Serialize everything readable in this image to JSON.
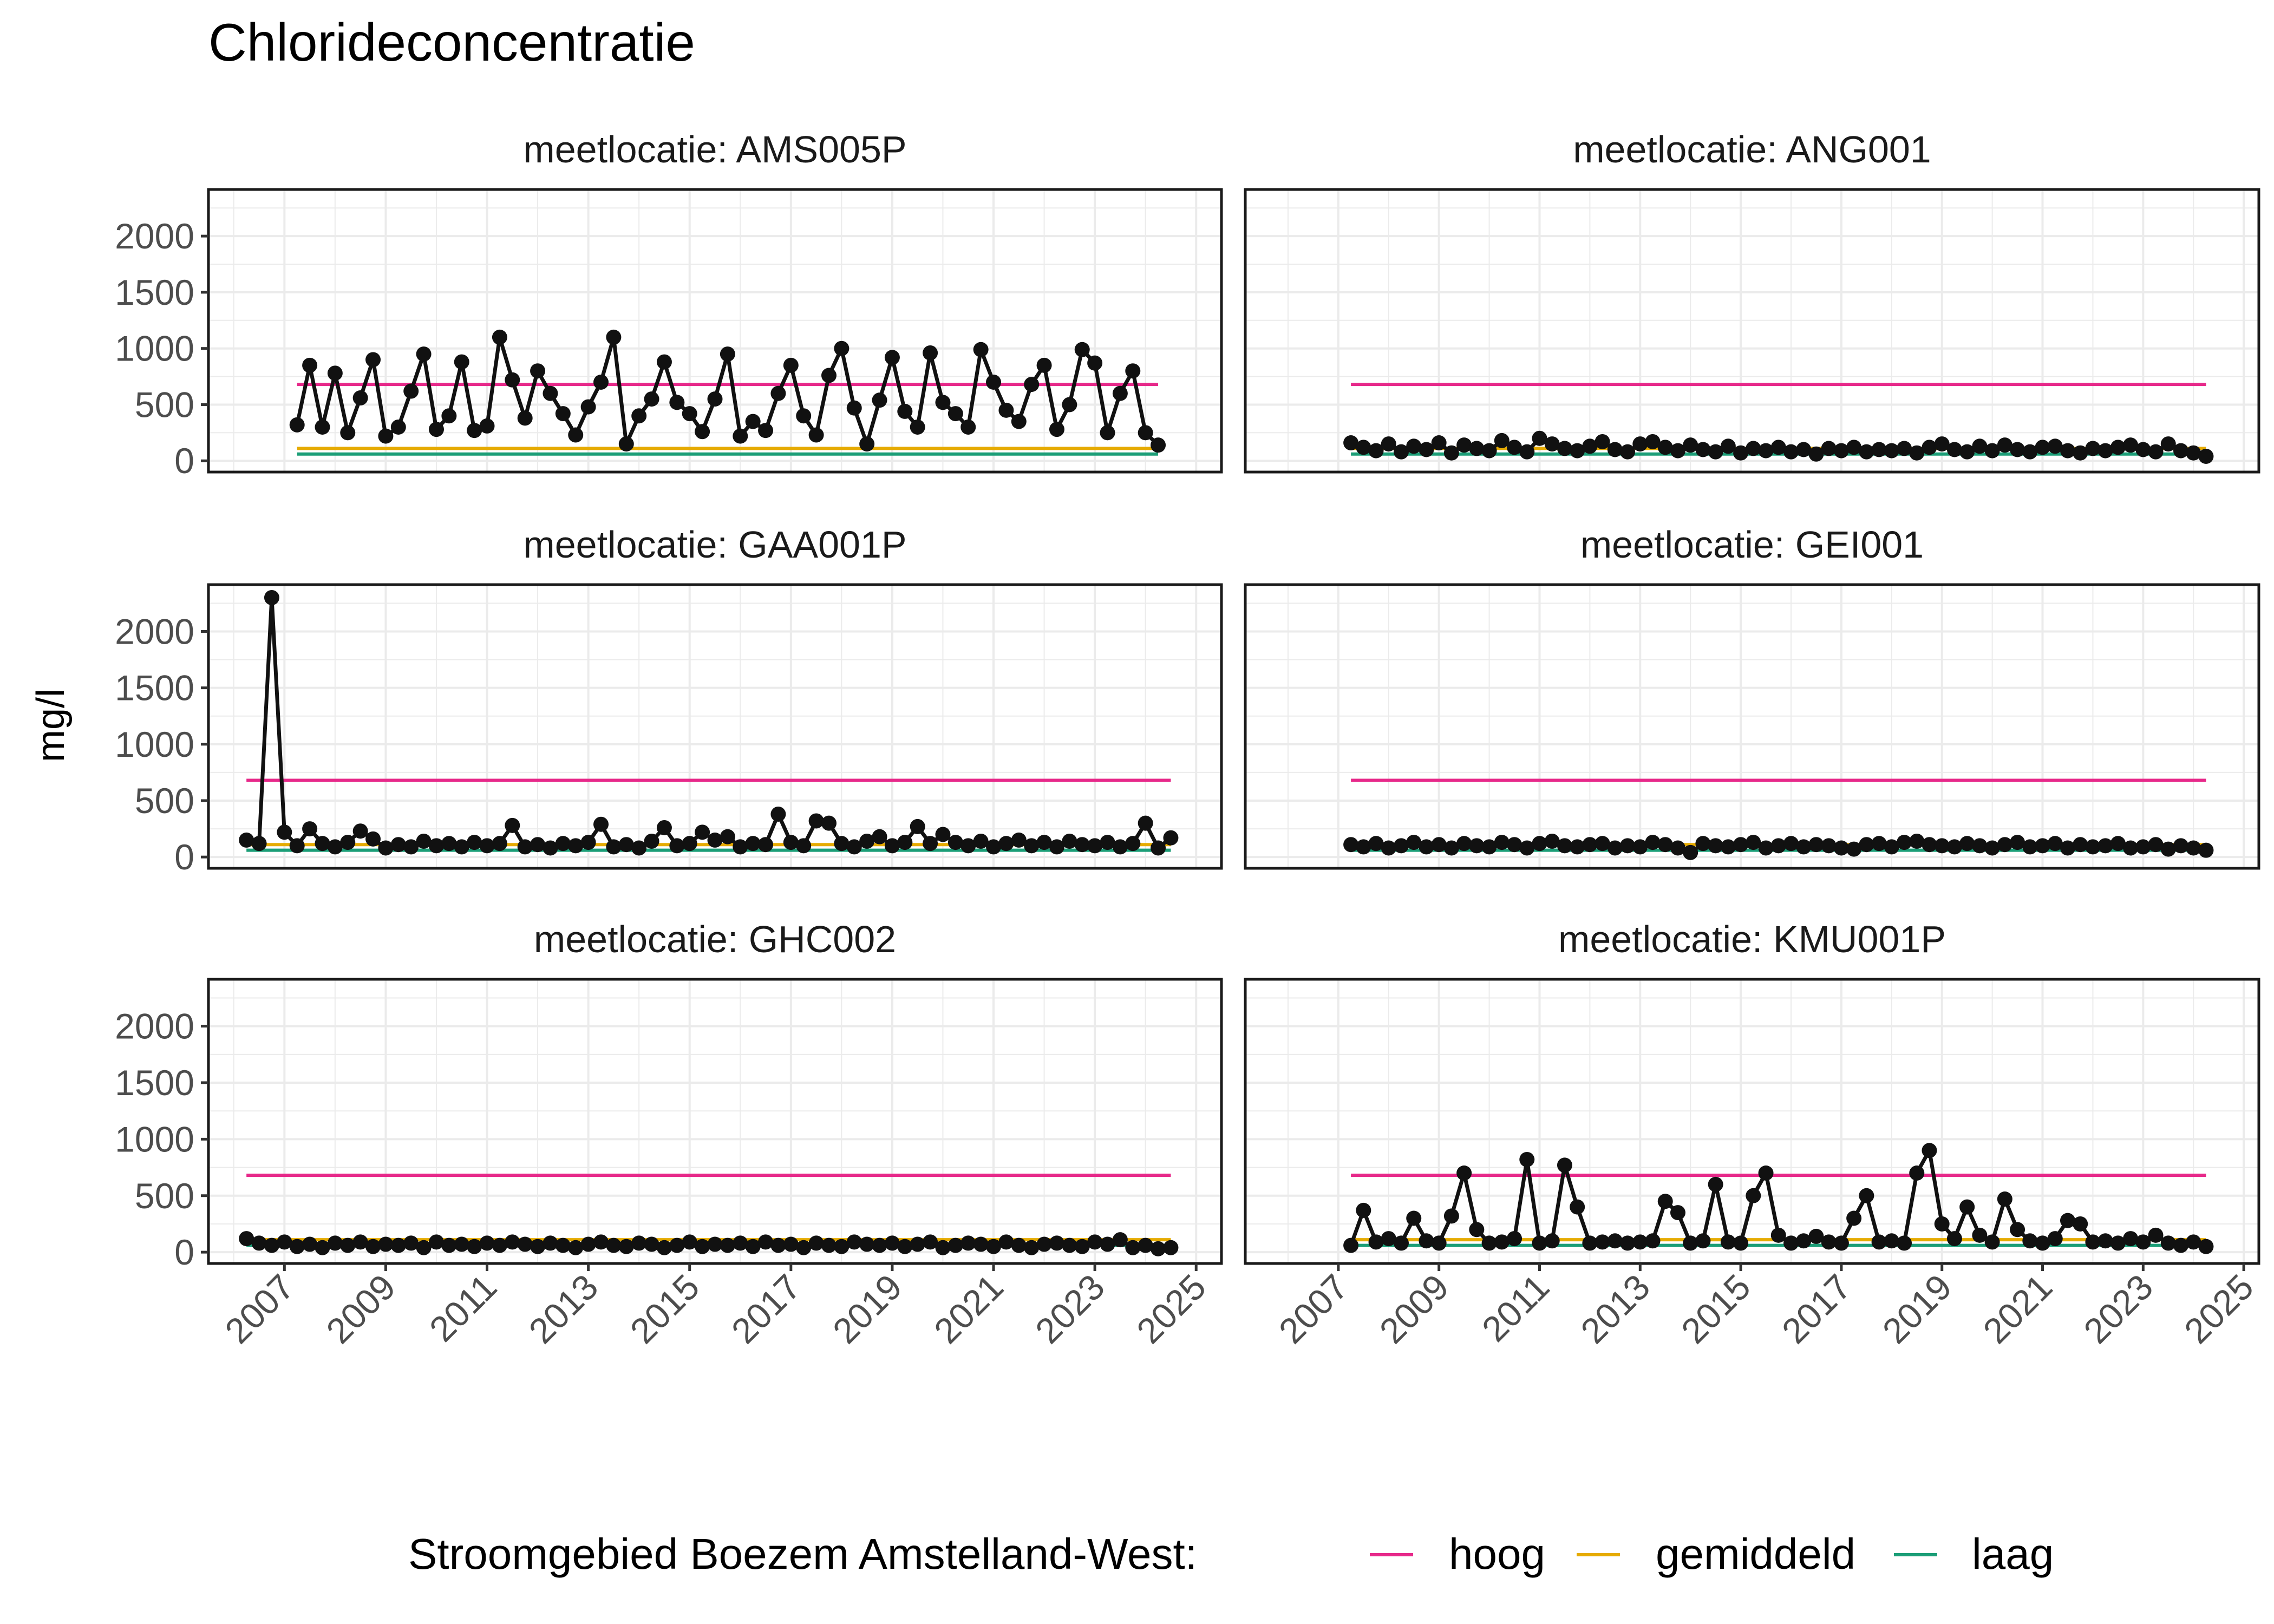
{
  "title": "Chlorideconcentratie",
  "ylabel": "mg/l",
  "legend": {
    "title": "Stroomgebied Boezem Amstelland-West:",
    "placement": "bottom",
    "items": [
      {
        "label": "hoog",
        "color": "#E7298A",
        "value": 680
      },
      {
        "label": "gemiddeld",
        "color": "#E6AB02",
        "value": 110
      },
      {
        "label": "laag",
        "color": "#1B9E77",
        "value": 60
      }
    ]
  },
  "colors": {
    "series": "#111111",
    "grid": "#EBEBEB",
    "tick_text": "#4D4D4D"
  },
  "y_ticks": [
    0,
    500,
    1000,
    1500,
    2000
  ],
  "x_ticks": [
    2007,
    2009,
    2011,
    2013,
    2015,
    2017,
    2019,
    2021,
    2023,
    2025
  ],
  "chart_data": [
    {
      "type": "line",
      "title": "meetlocatie: AMS005P",
      "xlim": [
        2005.5,
        2025.5
      ],
      "ylim": [
        -100,
        2415
      ],
      "grid": true,
      "x": [
        2007.25,
        2007.5,
        2007.75,
        2008,
        2008.25,
        2008.5,
        2008.75,
        2009,
        2009.25,
        2009.5,
        2009.75,
        2010,
        2010.25,
        2010.5,
        2010.75,
        2011,
        2011.25,
        2011.5,
        2011.75,
        2012,
        2012.25,
        2012.5,
        2012.75,
        2013,
        2013.25,
        2013.5,
        2013.75,
        2014,
        2014.25,
        2014.5,
        2014.75,
        2015,
        2015.25,
        2015.5,
        2015.75,
        2016,
        2016.25,
        2016.5,
        2016.75,
        2017,
        2017.25,
        2017.5,
        2017.75,
        2018,
        2018.25,
        2018.5,
        2018.75,
        2019,
        2019.25,
        2019.5,
        2019.75,
        2020,
        2020.25,
        2020.5,
        2020.75,
        2021,
        2021.25,
        2021.5,
        2021.75,
        2022,
        2022.25,
        2022.5,
        2022.75,
        2023,
        2023.25,
        2023.5,
        2023.75,
        2024,
        2024.25
      ],
      "y": [
        320,
        850,
        300,
        780,
        250,
        560,
        900,
        220,
        300,
        620,
        950,
        280,
        400,
        880,
        270,
        310,
        1100,
        720,
        380,
        800,
        600,
        420,
        230,
        480,
        700,
        1100,
        150,
        400,
        550,
        880,
        520,
        420,
        260,
        550,
        950,
        220,
        350,
        270,
        600,
        850,
        400,
        230,
        760,
        1000,
        470,
        150,
        540,
        920,
        440,
        300,
        960,
        520,
        420,
        300,
        990,
        700,
        450,
        350,
        680,
        850,
        280,
        500,
        990,
        870,
        250,
        600,
        800,
        250,
        140
      ]
    },
    {
      "type": "line",
      "title": "meetlocatie: ANG001",
      "xlim": [
        2005.15,
        2025.3
      ],
      "ylim": [
        -100,
        2415
      ],
      "grid": true,
      "x": [
        2007.25,
        2007.5,
        2007.75,
        2008,
        2008.25,
        2008.5,
        2008.75,
        2009,
        2009.25,
        2009.5,
        2009.75,
        2010,
        2010.25,
        2010.5,
        2010.75,
        2011,
        2011.25,
        2011.5,
        2011.75,
        2012,
        2012.25,
        2012.5,
        2012.75,
        2013,
        2013.25,
        2013.5,
        2013.75,
        2014,
        2014.25,
        2014.5,
        2014.75,
        2015,
        2015.25,
        2015.5,
        2015.75,
        2016,
        2016.25,
        2016.5,
        2016.75,
        2017,
        2017.25,
        2017.5,
        2017.75,
        2018,
        2018.25,
        2018.5,
        2018.75,
        2019,
        2019.25,
        2019.5,
        2019.75,
        2020,
        2020.25,
        2020.5,
        2020.75,
        2021,
        2021.25,
        2021.5,
        2021.75,
        2022,
        2022.25,
        2022.5,
        2022.75,
        2023,
        2023.25,
        2023.5,
        2023.75,
        2024,
        2024.25
      ],
      "y": [
        160,
        120,
        90,
        150,
        80,
        130,
        100,
        160,
        70,
        140,
        110,
        90,
        180,
        120,
        80,
        200,
        150,
        110,
        90,
        130,
        170,
        100,
        80,
        150,
        170,
        120,
        90,
        140,
        100,
        80,
        130,
        70,
        110,
        90,
        120,
        80,
        100,
        60,
        110,
        90,
        120,
        80,
        100,
        90,
        110,
        70,
        120,
        150,
        100,
        80,
        130,
        90,
        140,
        100,
        80,
        120,
        130,
        90,
        70,
        110,
        90,
        120,
        140,
        100,
        80,
        150,
        90,
        70,
        40
      ]
    },
    {
      "type": "line",
      "title": "meetlocatie: GAA001P",
      "xlim": [
        2005.5,
        2025.5
      ],
      "ylim": [
        -100,
        2415
      ],
      "grid": true,
      "x": [
        2006.25,
        2006.5,
        2006.75,
        2007,
        2007.25,
        2007.5,
        2007.75,
        2008,
        2008.25,
        2008.5,
        2008.75,
        2009,
        2009.25,
        2009.5,
        2009.75,
        2010,
        2010.25,
        2010.5,
        2010.75,
        2011,
        2011.25,
        2011.5,
        2011.75,
        2012,
        2012.25,
        2012.5,
        2012.75,
        2013,
        2013.25,
        2013.5,
        2013.75,
        2014,
        2014.25,
        2014.5,
        2014.75,
        2015,
        2015.25,
        2015.5,
        2015.75,
        2016,
        2016.25,
        2016.5,
        2016.75,
        2017,
        2017.25,
        2017.5,
        2017.75,
        2018,
        2018.25,
        2018.5,
        2018.75,
        2019,
        2019.25,
        2019.5,
        2019.75,
        2020,
        2020.25,
        2020.5,
        2020.75,
        2021,
        2021.25,
        2021.5,
        2021.75,
        2022,
        2022.25,
        2022.5,
        2022.75,
        2023,
        2023.25,
        2023.5,
        2023.75,
        2024,
        2024.25,
        2024.5
      ],
      "y": [
        150,
        120,
        2300,
        220,
        100,
        250,
        120,
        90,
        130,
        230,
        160,
        80,
        110,
        90,
        140,
        100,
        120,
        90,
        130,
        100,
        120,
        280,
        90,
        110,
        80,
        120,
        100,
        130,
        290,
        90,
        110,
        80,
        140,
        260,
        100,
        120,
        220,
        150,
        180,
        90,
        120,
        110,
        380,
        130,
        100,
        320,
        300,
        120,
        90,
        140,
        180,
        100,
        130,
        270,
        120,
        200,
        130,
        100,
        140,
        90,
        120,
        150,
        100,
        130,
        90,
        140,
        110,
        100,
        130,
        90,
        120,
        300,
        80,
        170
      ]
    },
    {
      "type": "line",
      "title": "meetlocatie: GEI001",
      "xlim": [
        2005.15,
        2025.3
      ],
      "ylim": [
        -100,
        2415
      ],
      "grid": true,
      "x": [
        2007.25,
        2007.5,
        2007.75,
        2008,
        2008.25,
        2008.5,
        2008.75,
        2009,
        2009.25,
        2009.5,
        2009.75,
        2010,
        2010.25,
        2010.5,
        2010.75,
        2011,
        2011.25,
        2011.5,
        2011.75,
        2012,
        2012.25,
        2012.5,
        2012.75,
        2013,
        2013.25,
        2013.5,
        2013.75,
        2014,
        2014.25,
        2014.5,
        2014.75,
        2015,
        2015.25,
        2015.5,
        2015.75,
        2016,
        2016.25,
        2016.5,
        2016.75,
        2017,
        2017.25,
        2017.5,
        2017.75,
        2018,
        2018.25,
        2018.5,
        2018.75,
        2019,
        2019.25,
        2019.5,
        2019.75,
        2020,
        2020.25,
        2020.5,
        2020.75,
        2021,
        2021.25,
        2021.5,
        2021.75,
        2022,
        2022.25,
        2022.5,
        2022.75,
        2023,
        2023.25,
        2023.5,
        2023.75,
        2024,
        2024.25
      ],
      "y": [
        110,
        90,
        120,
        80,
        100,
        130,
        90,
        110,
        80,
        120,
        100,
        90,
        130,
        110,
        80,
        120,
        140,
        100,
        90,
        110,
        120,
        80,
        100,
        90,
        130,
        110,
        80,
        40,
        120,
        100,
        90,
        110,
        130,
        80,
        100,
        120,
        90,
        110,
        100,
        80,
        70,
        110,
        120,
        90,
        130,
        140,
        110,
        100,
        90,
        120,
        100,
        80,
        110,
        130,
        90,
        100,
        120,
        80,
        110,
        90,
        100,
        120,
        80,
        90,
        110,
        70,
        100,
        80,
        60
      ]
    },
    {
      "type": "line",
      "title": "meetlocatie: GHC002",
      "xlim": [
        2005.5,
        2025.5
      ],
      "ylim": [
        -100,
        2415
      ],
      "grid": true,
      "x": [
        2006.25,
        2006.5,
        2006.75,
        2007,
        2007.25,
        2007.5,
        2007.75,
        2008,
        2008.25,
        2008.5,
        2008.75,
        2009,
        2009.25,
        2009.5,
        2009.75,
        2010,
        2010.25,
        2010.5,
        2010.75,
        2011,
        2011.25,
        2011.5,
        2011.75,
        2012,
        2012.25,
        2012.5,
        2012.75,
        2013,
        2013.25,
        2013.5,
        2013.75,
        2014,
        2014.25,
        2014.5,
        2014.75,
        2015,
        2015.25,
        2015.5,
        2015.75,
        2016,
        2016.25,
        2016.5,
        2016.75,
        2017,
        2017.25,
        2017.5,
        2017.75,
        2018,
        2018.25,
        2018.5,
        2018.75,
        2019,
        2019.25,
        2019.5,
        2019.75,
        2020,
        2020.25,
        2020.5,
        2020.75,
        2021,
        2021.25,
        2021.5,
        2021.75,
        2022,
        2022.25,
        2022.5,
        2022.75,
        2023,
        2023.25,
        2023.5,
        2023.75,
        2024,
        2024.25,
        2024.5
      ],
      "y": [
        120,
        80,
        60,
        90,
        50,
        70,
        40,
        80,
        60,
        90,
        50,
        70,
        60,
        80,
        40,
        90,
        60,
        70,
        50,
        80,
        60,
        90,
        70,
        50,
        80,
        60,
        40,
        70,
        90,
        60,
        50,
        80,
        70,
        40,
        60,
        90,
        50,
        70,
        60,
        80,
        50,
        90,
        60,
        70,
        40,
        80,
        60,
        50,
        90,
        70,
        60,
        80,
        50,
        70,
        90,
        40,
        60,
        80,
        70,
        50,
        90,
        60,
        40,
        70,
        80,
        60,
        50,
        90,
        70,
        110,
        40,
        60,
        30,
        40
      ]
    },
    {
      "type": "line",
      "title": "meetlocatie: KMU001P",
      "xlim": [
        2005.15,
        2025.3
      ],
      "ylim": [
        -100,
        2415
      ],
      "grid": true,
      "x": [
        2007.25,
        2007.5,
        2007.75,
        2008,
        2008.25,
        2008.5,
        2008.75,
        2009,
        2009.25,
        2009.5,
        2009.75,
        2010,
        2010.25,
        2010.5,
        2010.75,
        2011,
        2011.25,
        2011.5,
        2011.75,
        2012,
        2012.25,
        2012.5,
        2012.75,
        2013,
        2013.25,
        2013.5,
        2013.75,
        2014,
        2014.25,
        2014.5,
        2014.75,
        2015,
        2015.25,
        2015.5,
        2015.75,
        2016,
        2016.25,
        2016.5,
        2016.75,
        2017,
        2017.25,
        2017.5,
        2017.75,
        2018,
        2018.25,
        2018.5,
        2018.75,
        2019,
        2019.25,
        2019.5,
        2019.75,
        2020,
        2020.25,
        2020.5,
        2020.75,
        2021,
        2021.25,
        2021.5,
        2021.75,
        2022,
        2022.25,
        2022.5,
        2022.75,
        2023,
        2023.25,
        2023.5,
        2023.75,
        2024,
        2024.25
      ],
      "y": [
        60,
        370,
        90,
        120,
        80,
        300,
        100,
        80,
        320,
        700,
        200,
        80,
        90,
        120,
        820,
        80,
        100,
        770,
        400,
        80,
        90,
        100,
        80,
        90,
        100,
        450,
        350,
        80,
        100,
        600,
        90,
        80,
        500,
        700,
        150,
        80,
        100,
        140,
        90,
        80,
        300,
        500,
        90,
        100,
        80,
        700,
        900,
        250,
        120,
        400,
        150,
        90,
        470,
        200,
        100,
        80,
        120,
        280,
        250,
        90,
        100,
        80,
        120,
        90,
        150,
        80,
        60,
        90,
        50
      ]
    }
  ]
}
